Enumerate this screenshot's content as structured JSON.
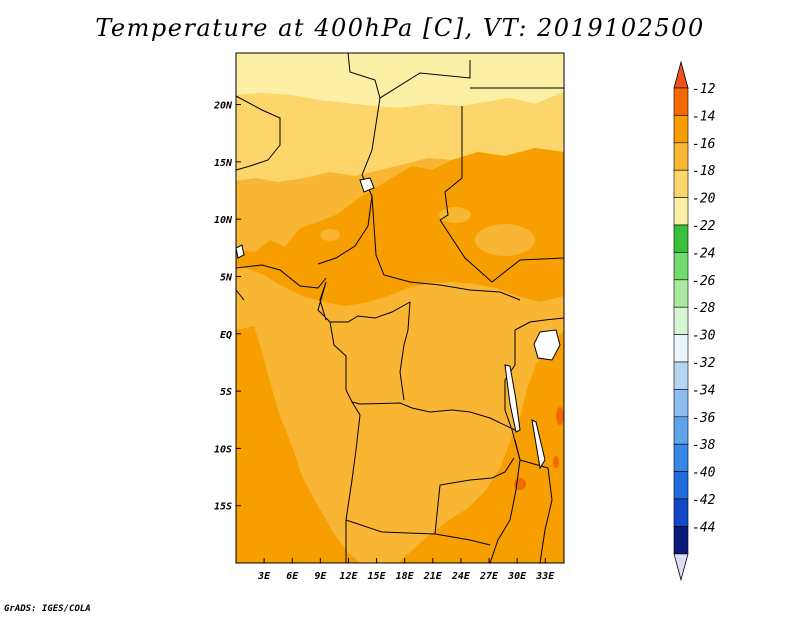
{
  "title": "Temperature at 400hPa [C], VT: 2019102500",
  "credit": "GrADS: IGES/COLA",
  "map": {
    "lon_range": [
      0,
      35
    ],
    "lat_range": [
      -20,
      24.5
    ],
    "lat_ticks": [
      {
        "value": 20,
        "label": "20N"
      },
      {
        "value": 15,
        "label": "15N"
      },
      {
        "value": 10,
        "label": "10N"
      },
      {
        "value": 5,
        "label": "5N"
      },
      {
        "value": 0,
        "label": "EQ"
      },
      {
        "value": -5,
        "label": "5S"
      },
      {
        "value": -10,
        "label": "10S"
      },
      {
        "value": -15,
        "label": "15S"
      }
    ],
    "lon_ticks": [
      {
        "value": 3,
        "label": "3E"
      },
      {
        "value": 6,
        "label": "6E"
      },
      {
        "value": 9,
        "label": "9E"
      },
      {
        "value": 12,
        "label": "12E"
      },
      {
        "value": 15,
        "label": "15E"
      },
      {
        "value": 18,
        "label": "18E"
      },
      {
        "value": 21,
        "label": "21E"
      },
      {
        "value": 24,
        "label": "24E"
      },
      {
        "value": 27,
        "label": "27E"
      },
      {
        "value": 30,
        "label": "30E"
      },
      {
        "value": 33,
        "label": "33E"
      }
    ]
  },
  "colorbar": {
    "top_color": "#f0501e",
    "bottom_color": "#ddddf8",
    "bins": [
      {
        "color": "#f56a00",
        "label": "-12"
      },
      {
        "color": "#f79e00",
        "label": "-14"
      },
      {
        "color": "#f8b634",
        "label": "-16"
      },
      {
        "color": "#fcd66b",
        "label": "-18"
      },
      {
        "color": "#fdf0a6",
        "label": "-20"
      },
      {
        "color": "#38c03a",
        "label": "-22"
      },
      {
        "color": "#72dc6e",
        "label": "-24"
      },
      {
        "color": "#a8eaa0",
        "label": "-26"
      },
      {
        "color": "#d8f5d4",
        "label": "-28"
      },
      {
        "color": "#eaf6fc",
        "label": "-30"
      },
      {
        "color": "#b4d6f2",
        "label": "-32"
      },
      {
        "color": "#8cbcf0",
        "label": "-34"
      },
      {
        "color": "#5ea2ec",
        "label": "-36"
      },
      {
        "color": "#3688e6",
        "label": "-38"
      },
      {
        "color": "#1f6cdc",
        "label": "-40"
      },
      {
        "color": "#1348c4",
        "label": "-42"
      },
      {
        "color": "#0a1a78",
        "label": "-44"
      }
    ]
  }
}
